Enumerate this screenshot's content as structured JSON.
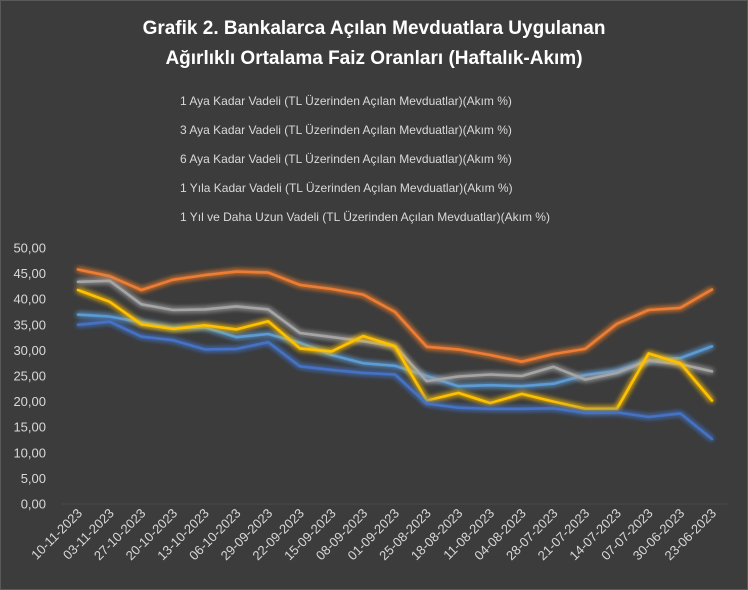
{
  "chart_data": {
    "type": "line",
    "title_lines": [
      "Grafik 2. Bankalarca Açılan Mevduatlara Uygulanan",
      "Ağırlıklı Ortalama Faiz Oranları (Haftalık-Akım)"
    ],
    "xlabel": "",
    "ylabel": "",
    "ylim": [
      0,
      50
    ],
    "yticks": [
      0,
      5,
      10,
      15,
      20,
      25,
      30,
      35,
      40,
      45,
      50
    ],
    "ytick_labels": [
      "0,00",
      "5,00",
      "10,00",
      "15,00",
      "20,00",
      "25,00",
      "30,00",
      "35,00",
      "40,00",
      "45,00",
      "50,00"
    ],
    "grid": false,
    "legend_position": "top",
    "categories": [
      "10-11-2023",
      "03-11-2023",
      "27-10-2023",
      "20-10-2023",
      "13-10-2023",
      "06-10-2023",
      "29-09-2023",
      "22-09-2023",
      "15-09-2023",
      "08-09-2023",
      "01-09-2023",
      "25-08-2023",
      "18-08-2023",
      "11-08-2023",
      "04-08-2023",
      "28-07-2023",
      "21-07-2023",
      "14-07-2023",
      "07-07-2023",
      "30-06-2023",
      "23-06-2023"
    ],
    "series": [
      {
        "name": "1 Aya Kadar Vadeli (TL Üzerinden Açılan Mevduatlar)(Akım %)",
        "color": "#5b9bd5",
        "values": [
          37.0,
          36.6,
          35.5,
          34.4,
          34.5,
          32.6,
          33.2,
          31.5,
          29.1,
          27.5,
          27.0,
          25.0,
          23.0,
          23.2,
          23.0,
          23.5,
          25.2,
          26.0,
          28.0,
          28.5,
          30.8
        ]
      },
      {
        "name": "3 Aya Kadar Vadeli (TL Üzerinden Açılan Mevduatlar)(Akım %)",
        "color": "#ed7d31",
        "values": [
          45.8,
          44.5,
          41.8,
          43.8,
          44.7,
          45.4,
          45.2,
          42.8,
          42.0,
          40.9,
          37.5,
          30.7,
          30.2,
          29.1,
          27.8,
          29.3,
          30.3,
          35.2,
          37.9,
          38.3,
          41.9
        ]
      },
      {
        "name": "6 Aya Kadar Vadeli (TL Üzerinden Açılan Mevduatlar)(Akım %)",
        "color": "#a5a5a5",
        "values": [
          43.4,
          43.6,
          39.0,
          37.9,
          38.0,
          38.6,
          38.0,
          33.4,
          32.6,
          31.8,
          30.8,
          24.0,
          24.9,
          25.3,
          25.0,
          26.8,
          24.3,
          25.6,
          28.0,
          27.3,
          25.9
        ]
      },
      {
        "name": "1 Yıla Kadar Vadeli (TL Üzerinden Açılan Mevduatlar)(Akım %)",
        "color": "#ffc000",
        "values": [
          41.8,
          39.5,
          35.1,
          34.2,
          34.9,
          34.1,
          35.7,
          30.4,
          29.8,
          32.8,
          30.8,
          20.2,
          21.7,
          19.7,
          21.5,
          20.0,
          18.6,
          18.6,
          29.4,
          27.5,
          20.2
        ]
      },
      {
        "name": "1 Yıl ve Daha Uzun Vadeli (TL Üzerinden Açılan Mevduatlar)(Akım %)",
        "color": "#4472c4",
        "values": [
          35.0,
          35.6,
          32.7,
          32.0,
          30.2,
          30.3,
          31.6,
          26.9,
          26.2,
          25.6,
          25.3,
          19.6,
          18.8,
          18.6,
          18.6,
          18.7,
          17.8,
          17.9,
          17.0,
          17.7,
          12.7
        ]
      }
    ]
  }
}
